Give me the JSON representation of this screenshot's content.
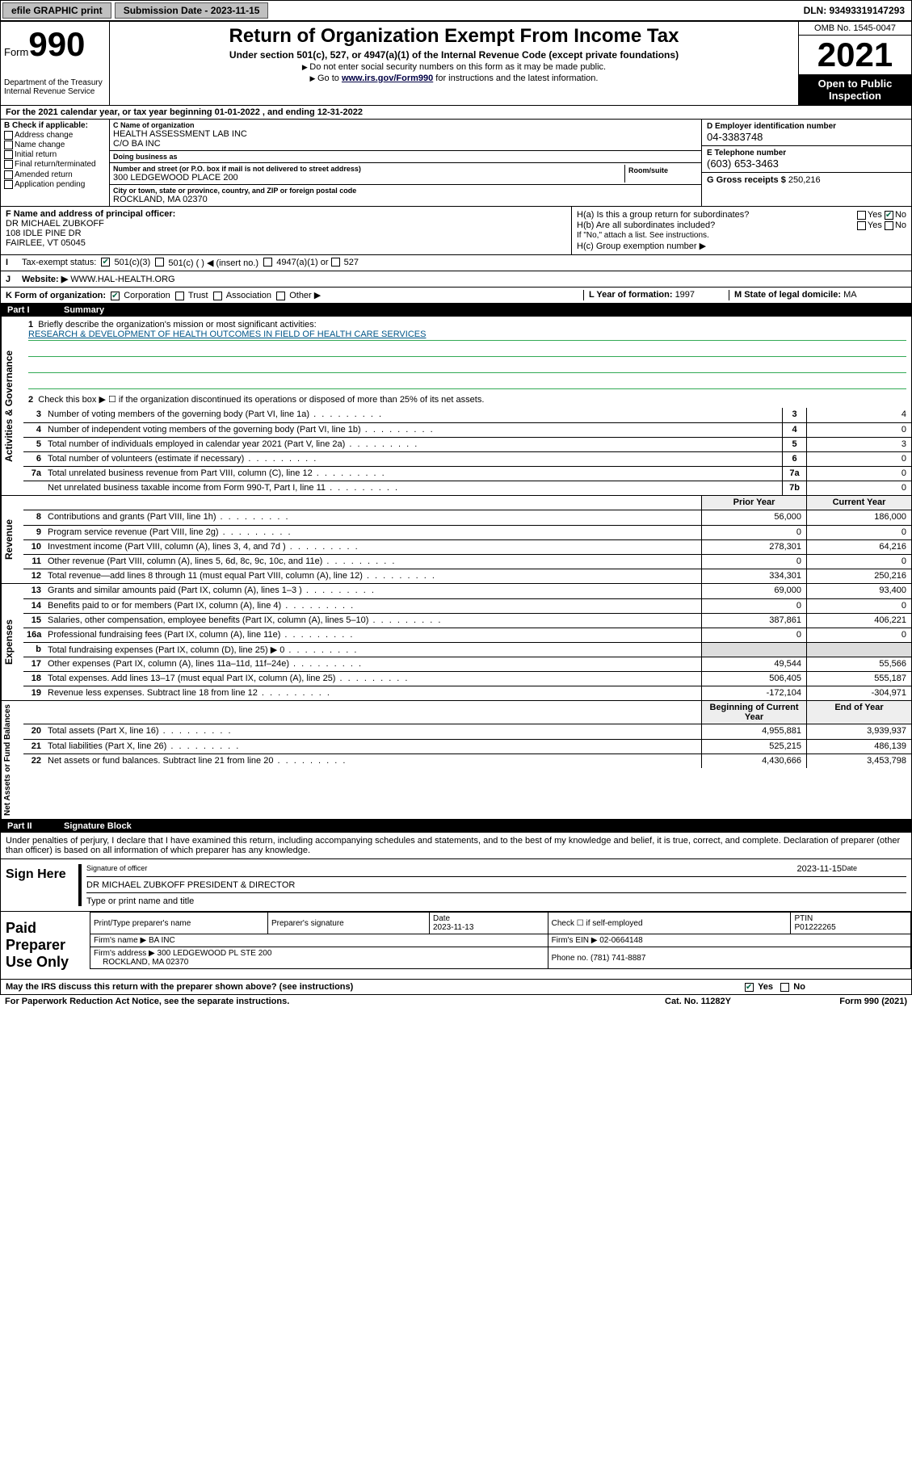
{
  "topbar": {
    "efile": "efile GRAPHIC print",
    "sub_label": "Submission Date - 2023-11-15",
    "dln": "DLN: 93493319147293"
  },
  "header": {
    "form_prefix": "Form",
    "form_no": "990",
    "dept": "Department of the Treasury Internal Revenue Service",
    "title": "Return of Organization Exempt From Income Tax",
    "subtitle": "Under section 501(c), 527, or 4947(a)(1) of the Internal Revenue Code (except private foundations)",
    "note1": "Do not enter social security numbers on this form as it may be made public.",
    "note2_pre": "Go to ",
    "note2_link": "www.irs.gov/Form990",
    "note2_post": " for instructions and the latest information.",
    "omb": "OMB No. 1545-0047",
    "year": "2021",
    "open": "Open to Public Inspection"
  },
  "A": {
    "text": "For the 2021 calendar year, or tax year beginning 01-01-2022 , and ending 12-31-2022"
  },
  "B": {
    "label": "B Check if applicable:",
    "opts": [
      "Address change",
      "Name change",
      "Initial return",
      "Final return/terminated",
      "Amended return",
      "Application pending"
    ]
  },
  "C": {
    "name_lbl": "C Name of organization",
    "name": "HEALTH ASSESSMENT LAB INC",
    "co": "C/O BA INC",
    "dba_lbl": "Doing business as",
    "dba": "",
    "addr_lbl": "Number and street (or P.O. box if mail is not delivered to street address)",
    "addr": "300 LEDGEWOOD PLACE 200",
    "room_lbl": "Room/suite",
    "city_lbl": "City or town, state or province, country, and ZIP or foreign postal code",
    "city": "ROCKLAND, MA 02370"
  },
  "D": {
    "lbl": "D Employer identification number",
    "val": "04-3383748"
  },
  "E": {
    "lbl": "E Telephone number",
    "val": "(603) 653-3463"
  },
  "G": {
    "lbl": "G Gross receipts $ ",
    "val": "250,216"
  },
  "F": {
    "lbl": "F Name and address of principal officer:",
    "line1": "DR MICHAEL ZUBKOFF",
    "line2": "108 IDLE PINE DR",
    "line3": "FAIRLEE, VT 05045"
  },
  "H": {
    "a": "H(a) Is this a group return for subordinates?",
    "b": "H(b) Are all subordinates included?",
    "bnote": "If \"No,\" attach a list. See instructions.",
    "c": "H(c) Group exemption number ▶",
    "yes": "Yes",
    "no": "No"
  },
  "I": {
    "lbl": "Tax-exempt status:",
    "o1": "501(c)(3)",
    "o2": "501(c) (   ) ◀ (insert no.)",
    "o3": "4947(a)(1) or",
    "o4": "527"
  },
  "J": {
    "lbl": "Website: ▶",
    "val": "WWW.HAL-HEALTH.ORG"
  },
  "K": {
    "lbl": "K Form of organization:",
    "o1": "Corporation",
    "o2": "Trust",
    "o3": "Association",
    "o4": "Other ▶"
  },
  "L": {
    "lbl": "L Year of formation: ",
    "val": "1997"
  },
  "M": {
    "lbl": "M State of legal domicile: ",
    "val": "MA"
  },
  "partI": {
    "title": "Part I",
    "name": "Summary",
    "q1": "Briefly describe the organization's mission or most significant activities:",
    "mission": "RESEARCH & DEVELOPMENT OF HEALTH OUTCOMES IN FIELD OF HEALTH CARE SERVICES",
    "q2": "Check this box ▶ ☐ if the organization discontinued its operations or disposed of more than 25% of its net assets.",
    "lines_gov": [
      {
        "n": "3",
        "t": "Number of voting members of the governing body (Part VI, line 1a)",
        "box": "3",
        "v": "4"
      },
      {
        "n": "4",
        "t": "Number of independent voting members of the governing body (Part VI, line 1b)",
        "box": "4",
        "v": "0"
      },
      {
        "n": "5",
        "t": "Total number of individuals employed in calendar year 2021 (Part V, line 2a)",
        "box": "5",
        "v": "3"
      },
      {
        "n": "6",
        "t": "Total number of volunteers (estimate if necessary)",
        "box": "6",
        "v": "0"
      },
      {
        "n": "7a",
        "t": "Total unrelated business revenue from Part VIII, column (C), line 12",
        "box": "7a",
        "v": "0"
      },
      {
        "n": "",
        "t": "Net unrelated business taxable income from Form 990-T, Part I, line 11",
        "box": "7b",
        "v": "0"
      }
    ],
    "hdr_prior": "Prior Year",
    "hdr_curr": "Current Year",
    "rev": [
      {
        "n": "8",
        "t": "Contributions and grants (Part VIII, line 1h)",
        "p": "56,000",
        "c": "186,000"
      },
      {
        "n": "9",
        "t": "Program service revenue (Part VIII, line 2g)",
        "p": "0",
        "c": "0"
      },
      {
        "n": "10",
        "t": "Investment income (Part VIII, column (A), lines 3, 4, and 7d )",
        "p": "278,301",
        "c": "64,216"
      },
      {
        "n": "11",
        "t": "Other revenue (Part VIII, column (A), lines 5, 6d, 8c, 9c, 10c, and 11e)",
        "p": "0",
        "c": "0"
      },
      {
        "n": "12",
        "t": "Total revenue—add lines 8 through 11 (must equal Part VIII, column (A), line 12)",
        "p": "334,301",
        "c": "250,216"
      }
    ],
    "exp": [
      {
        "n": "13",
        "t": "Grants and similar amounts paid (Part IX, column (A), lines 1–3 )",
        "p": "69,000",
        "c": "93,400"
      },
      {
        "n": "14",
        "t": "Benefits paid to or for members (Part IX, column (A), line 4)",
        "p": "0",
        "c": "0"
      },
      {
        "n": "15",
        "t": "Salaries, other compensation, employee benefits (Part IX, column (A), lines 5–10)",
        "p": "387,861",
        "c": "406,221"
      },
      {
        "n": "16a",
        "t": "Professional fundraising fees (Part IX, column (A), line 11e)",
        "p": "0",
        "c": "0"
      },
      {
        "n": "b",
        "t": "Total fundraising expenses (Part IX, column (D), line 25) ▶ 0",
        "p": "",
        "c": "",
        "shade": true
      },
      {
        "n": "17",
        "t": "Other expenses (Part IX, column (A), lines 11a–11d, 11f–24e)",
        "p": "49,544",
        "c": "55,566"
      },
      {
        "n": "18",
        "t": "Total expenses. Add lines 13–17 (must equal Part IX, column (A), line 25)",
        "p": "506,405",
        "c": "555,187"
      },
      {
        "n": "19",
        "t": "Revenue less expenses. Subtract line 18 from line 12",
        "p": "-172,104",
        "c": "-304,971"
      }
    ],
    "hdr_boy": "Beginning of Current Year",
    "hdr_eoy": "End of Year",
    "net": [
      {
        "n": "20",
        "t": "Total assets (Part X, line 16)",
        "p": "4,955,881",
        "c": "3,939,937"
      },
      {
        "n": "21",
        "t": "Total liabilities (Part X, line 26)",
        "p": "525,215",
        "c": "486,139"
      },
      {
        "n": "22",
        "t": "Net assets or fund balances. Subtract line 21 from line 20",
        "p": "4,430,666",
        "c": "3,453,798"
      }
    ]
  },
  "partII": {
    "title": "Part II",
    "name": "Signature Block",
    "penalty": "Under penalties of perjury, I declare that I have examined this return, including accompanying schedules and statements, and to the best of my knowledge and belief, it is true, correct, and complete. Declaration of preparer (other than officer) is based on all information of which preparer has any knowledge.",
    "sign_here": "Sign Here",
    "sig_officer": "Signature of officer",
    "date": "Date",
    "sig_date": "2023-11-15",
    "name_title": "DR MICHAEL ZUBKOFF  PRESIDENT & DIRECTOR",
    "type_name": "Type or print name and title",
    "paid": "Paid Preparer Use Only",
    "p_name_lbl": "Print/Type preparer's name",
    "p_sig_lbl": "Preparer's signature",
    "p_date_lbl": "Date",
    "p_date": "2023-11-13",
    "p_check": "Check ☐ if self-employed",
    "ptin_lbl": "PTIN",
    "ptin": "P01222265",
    "firm_name_lbl": "Firm's name ▶",
    "firm_name": "BA INC",
    "firm_ein_lbl": "Firm's EIN ▶",
    "firm_ein": "02-0664148",
    "firm_addr_lbl": "Firm's address ▶",
    "firm_addr": "300 LEDGEWOOD PL STE 200",
    "firm_city": "ROCKLAND, MA 02370",
    "phone_lbl": "Phone no.",
    "phone": "(781) 741-8887",
    "may": "May the IRS discuss this return with the preparer shown above? (see instructions)",
    "yes": "Yes",
    "no": "No"
  },
  "footer": {
    "pra": "For Paperwork Reduction Act Notice, see the separate instructions.",
    "cat": "Cat. No. 11282Y",
    "form": "Form 990 (2021)"
  },
  "colors": {
    "btn_bg": "#c0c0c0",
    "link": "#004488",
    "check_green": "#006644"
  }
}
